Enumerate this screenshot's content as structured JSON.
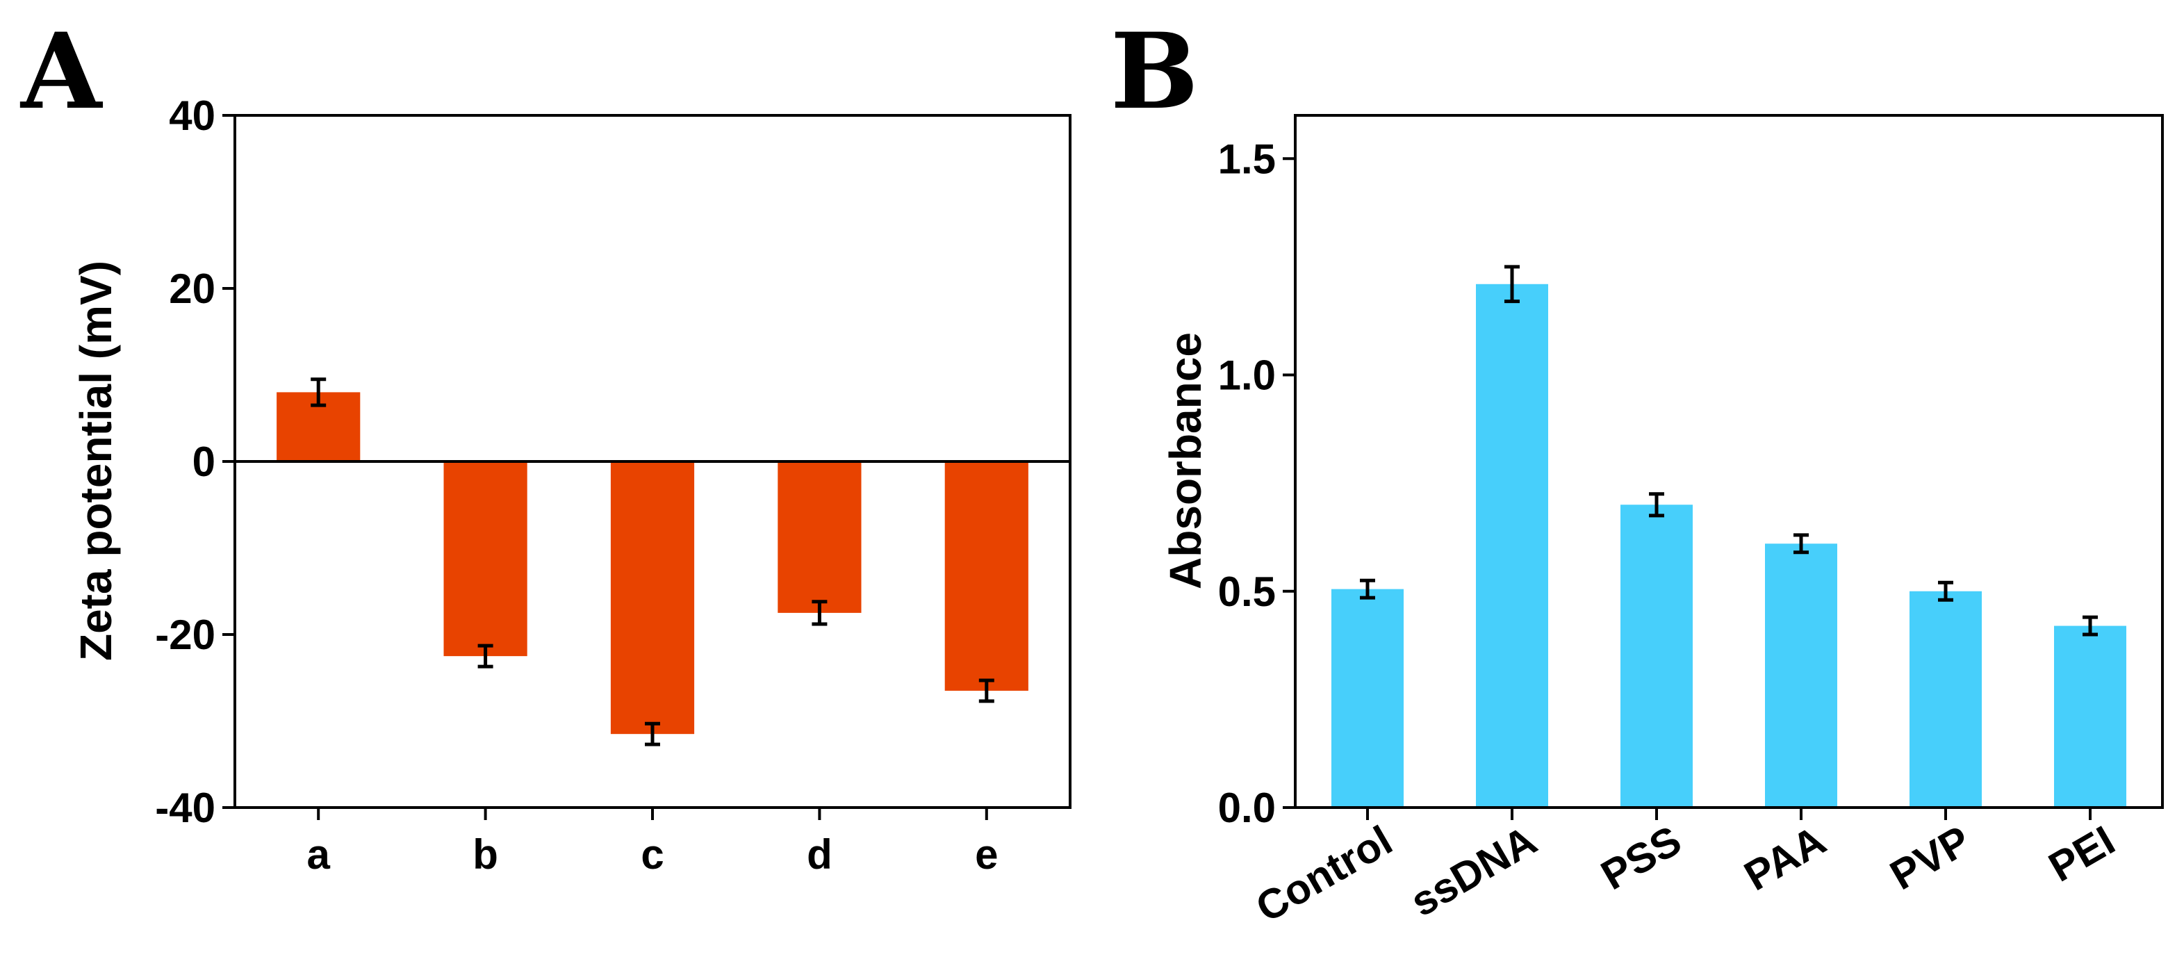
{
  "panels": [
    {
      "panel_label": "A",
      "ylabel": "Zeta potential (mV)",
      "xlabel": "",
      "bar_color": "#E84300",
      "ytick_labels": [
        "40",
        "20",
        "0",
        "-20",
        "-40"
      ]
    },
    {
      "panel_label": "B",
      "ylabel": "Absorbance",
      "xlabel": "",
      "bar_color": "#47CFFB",
      "ytick_labels": [
        "1.5",
        "1.0",
        "0.5",
        "0.0"
      ]
    }
  ],
  "chart_data": [
    {
      "type": "bar",
      "title": "",
      "xlabel": "",
      "ylabel": "Zeta potential (mV)",
      "categories": [
        "a",
        "b",
        "c",
        "d",
        "e"
      ],
      "values": [
        8,
        -22.5,
        -31.5,
        -17.5,
        -26.5
      ],
      "errors": [
        1.5,
        1.2,
        1.2,
        1.3,
        1.2
      ],
      "ylim": [
        -40,
        40
      ],
      "yticks": [
        -40,
        -20,
        0,
        20,
        40
      ],
      "grid": false,
      "zero_line": true
    },
    {
      "type": "bar",
      "title": "",
      "xlabel": "",
      "ylabel": "Absorbance",
      "categories": [
        "Control",
        "ssDNA",
        "PSS",
        "PAA",
        "PVP",
        "PEI"
      ],
      "values": [
        0.505,
        1.21,
        0.7,
        0.61,
        0.5,
        0.42
      ],
      "errors": [
        0.02,
        0.04,
        0.025,
        0.02,
        0.02,
        0.02
      ],
      "ylim": [
        0,
        1.6
      ],
      "yticks": [
        0.0,
        0.5,
        1.0,
        1.5
      ],
      "grid": false
    }
  ]
}
